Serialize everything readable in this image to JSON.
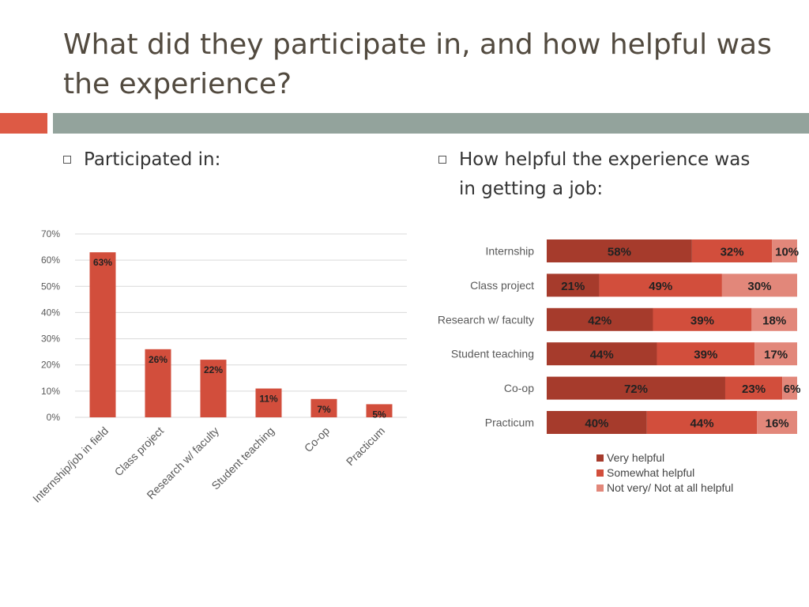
{
  "title": "What did they participate in, and how helpful was the experience?",
  "bullets": {
    "left": "Participated in:",
    "right": "How helpful the experience was in getting a job:"
  },
  "colors": {
    "accent": "#dd5a45",
    "bar": "#d24e3c",
    "grid": "#d9d9d9",
    "very_helpful": "#a63b2c",
    "somewhat_helpful": "#d24e3c",
    "not_helpful": "#e2877a"
  },
  "chart_data": [
    {
      "type": "bar",
      "categories": [
        "Internship/job in field",
        "Class project",
        "Research w/ faculty",
        "Student teaching",
        "Co-op",
        "Practicum"
      ],
      "values": [
        63,
        26,
        22,
        11,
        7,
        5
      ],
      "data_labels": [
        "63%",
        "26%",
        "22%",
        "11%",
        "7%",
        "5%"
      ],
      "ylim": [
        0,
        70
      ],
      "yticks": [
        "0%",
        "10%",
        "20%",
        "30%",
        "40%",
        "50%",
        "60%",
        "70%"
      ],
      "grid": true
    },
    {
      "type": "bar",
      "orientation": "horizontal",
      "stacked": true,
      "percent_stacked": true,
      "categories": [
        "Internship",
        "Class project",
        "Research w/ faculty",
        "Student teaching",
        "Co-op",
        "Practicum"
      ],
      "series": [
        {
          "name": "Very helpful",
          "values": [
            58,
            21,
            42,
            44,
            72,
            40
          ],
          "labels": [
            "58%",
            "21%",
            "42%",
            "44%",
            "72%",
            "40%"
          ]
        },
        {
          "name": "Somewhat helpful",
          "values": [
            32,
            49,
            39,
            39,
            23,
            44
          ],
          "labels": [
            "32%",
            "49%",
            "39%",
            "39%",
            "23%",
            "44%"
          ]
        },
        {
          "name": "Not very/ Not at all helpful",
          "values": [
            10,
            30,
            18,
            17,
            6,
            16
          ],
          "labels": [
            "10%",
            "30%",
            "18%",
            "17%",
            "6%",
            "16%"
          ]
        }
      ],
      "legend": "bottom"
    }
  ]
}
